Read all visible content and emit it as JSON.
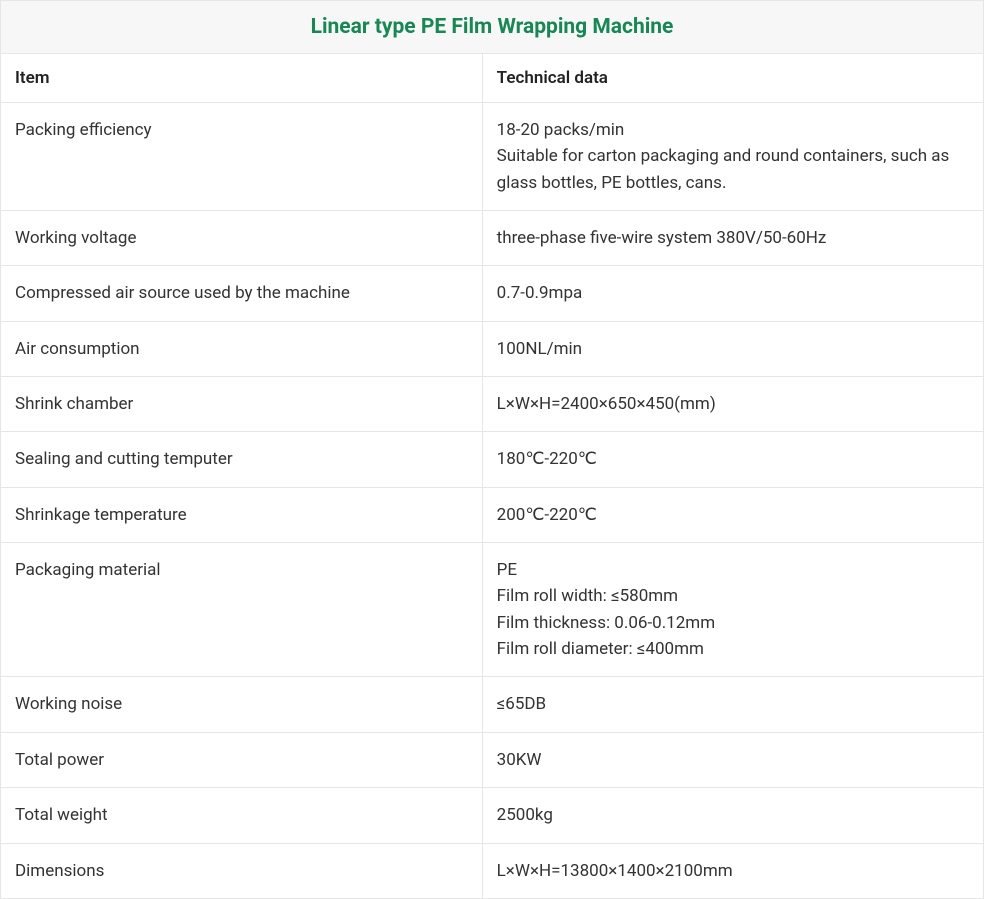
{
  "table": {
    "type": "table",
    "title": "Linear type PE Film Wrapping Machine",
    "title_color": "#198754",
    "title_bg": "#f7f7f7",
    "title_fontsize": 21,
    "title_fontweight": 700,
    "header_fontsize": 17,
    "header_fontweight": 600,
    "cell_fontsize": 17,
    "cell_fontweight": 400,
    "border_color": "#e6e6e6",
    "background_color": "#ffffff",
    "text_color": "#333333",
    "header_text_color": "#222222",
    "column_widths_pct": [
      49,
      51
    ],
    "line_height": 1.55,
    "columns": [
      "Item",
      "Technical data"
    ],
    "rows": [
      {
        "item": "Packing efficiency",
        "data_lines": [
          "18-20 packs/min",
          "Suitable for carton packaging and round containers, such as glass bottles, PE bottles, cans."
        ]
      },
      {
        "item": "Working voltage",
        "data_lines": [
          "three-phase five-wire system 380V/50-60Hz"
        ]
      },
      {
        "item": "Compressed air source used by the machine",
        "data_lines": [
          "0.7-0.9mpa"
        ]
      },
      {
        "item": "Air consumption",
        "data_lines": [
          "100NL/min"
        ]
      },
      {
        "item": "Shrink chamber",
        "data_lines": [
          "L×W×H=2400×650×450(mm)"
        ]
      },
      {
        "item": "Sealing and cutting temputer",
        "data_lines": [
          "180℃-220℃"
        ]
      },
      {
        "item": "Shrinkage temperature",
        "data_lines": [
          "200℃-220℃"
        ]
      },
      {
        "item": "Packaging material",
        "data_lines": [
          "PE",
          "Film roll width: ≤580mm",
          "Film thickness: 0.06-0.12mm",
          "Film roll diameter: ≤400mm"
        ]
      },
      {
        "item": "Working noise",
        "data_lines": [
          "≤65DB"
        ]
      },
      {
        "item": "Total power",
        "data_lines": [
          "30KW"
        ]
      },
      {
        "item": "Total weight",
        "data_lines": [
          "2500kg"
        ]
      },
      {
        "item": "Dimensions",
        "data_lines": [
          "L×W×H=13800×1400×2100mm"
        ]
      }
    ]
  }
}
